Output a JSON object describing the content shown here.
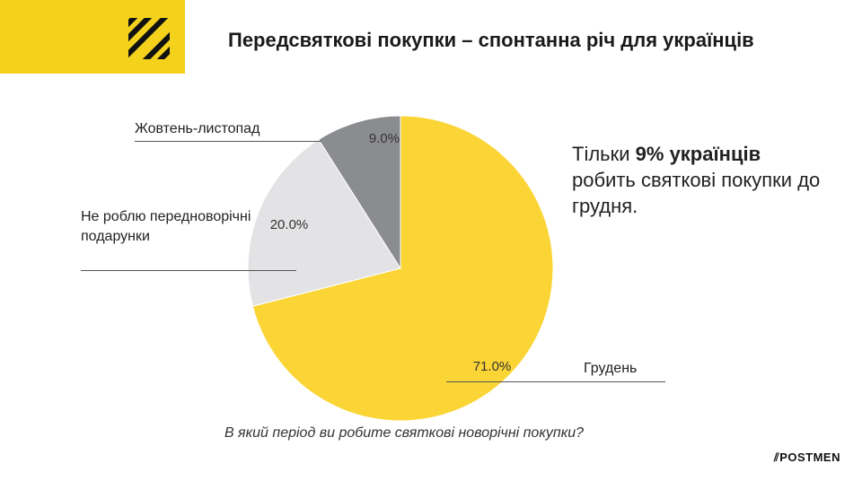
{
  "header": {
    "title": "Передсвяткові покупки – спонтанна річ для українців"
  },
  "callout": {
    "pre": "Тільки ",
    "bold": "9% українців",
    "post": " робить святкові покупки до грудня."
  },
  "question": "В який період ви робите святкові новорічні покупки?",
  "brand": "⫽POSTMEN",
  "colors": {
    "accent": "#f4d21c",
    "december": "#fbd535",
    "none": "#e3e3e5",
    "oct_nov": "#8b8c8f"
  },
  "chart_data": {
    "type": "pie",
    "slices": [
      {
        "label": "Грудень",
        "value": 71.0,
        "value_label": "71.0%",
        "color": "#fbd535"
      },
      {
        "label": "Не роблю передноворічні подарунки",
        "value": 20.0,
        "value_label": "20.0%",
        "color": "#e3e3e5"
      },
      {
        "label": "Жовтень-листопад",
        "value": 9.0,
        "value_label": "9.0%",
        "color": "#8b8c8f"
      }
    ]
  }
}
